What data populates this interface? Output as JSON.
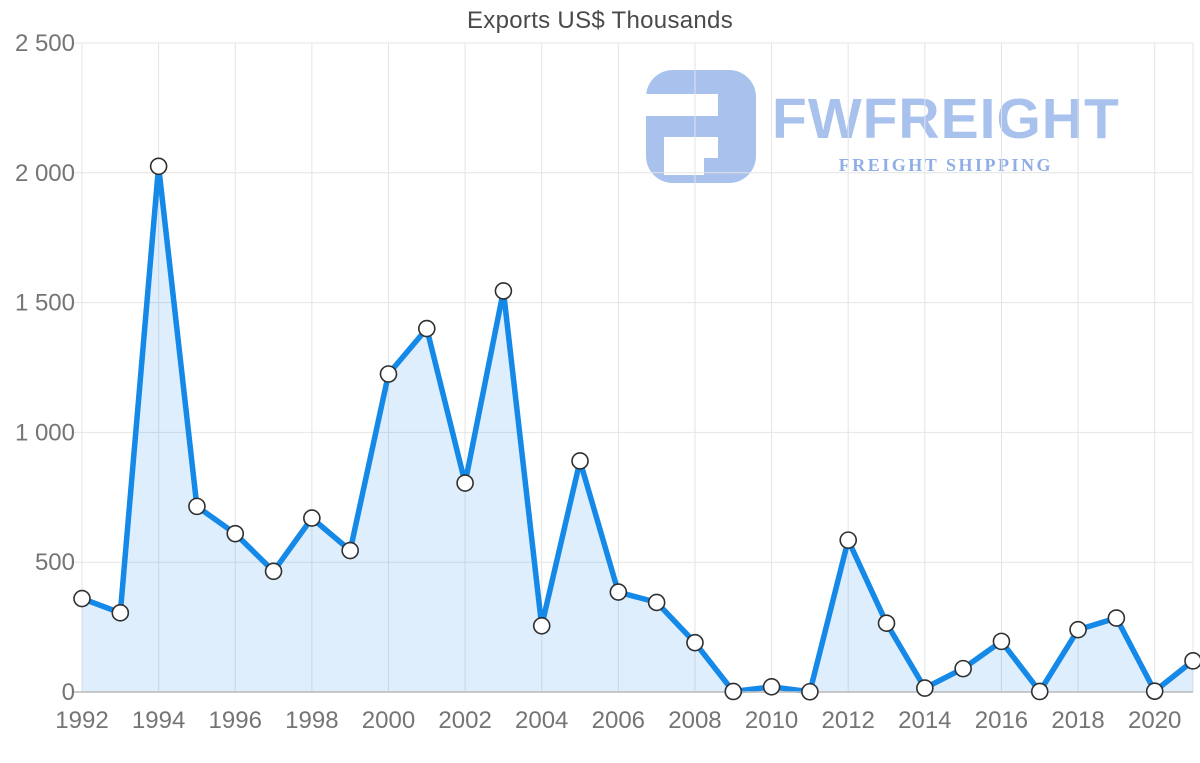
{
  "title": "Exports US$ Thousands",
  "watermark": {
    "brand": "FWFREIGHT",
    "tagline": "FREIGHT SHIPPING"
  },
  "theme": {
    "line_color": "#1589e8",
    "fill_color": "rgba(21,137,232,0.14)",
    "grid_color": "#e4e4e4",
    "axis_line_color": "#c2c2c2",
    "tick_text_color": "#757575",
    "title_color": "#4a4a4a",
    "marker_fill": "#ffffff",
    "marker_stroke": "#2f2f2f",
    "watermark_color": "#a8c1ed",
    "watermark_tagline_color": "#8fade6"
  },
  "chart_data": {
    "type": "area",
    "title": "Exports US$ Thousands",
    "x": [
      1992,
      1993,
      1994,
      1995,
      1996,
      1997,
      1998,
      1999,
      2000,
      2001,
      2002,
      2003,
      2004,
      2005,
      2006,
      2007,
      2008,
      2009,
      2010,
      2011,
      2012,
      2013,
      2014,
      2015,
      2016,
      2017,
      2018,
      2019,
      2020,
      2021
    ],
    "series": [
      {
        "name": "Exports US$ Thousands",
        "values": [
          360,
          305,
          2025,
          715,
          610,
          465,
          670,
          545,
          1225,
          1400,
          805,
          1545,
          255,
          890,
          385,
          345,
          190,
          2,
          20,
          1,
          585,
          265,
          15,
          90,
          195,
          2,
          240,
          285,
          3,
          120
        ]
      }
    ],
    "xlabel": "",
    "ylabel": "",
    "ylim": [
      0,
      2500
    ],
    "xlim": [
      1992,
      2021
    ],
    "y_ticks": [
      0,
      500,
      1000,
      1500,
      2000,
      2500
    ],
    "y_tick_labels": [
      "0",
      "500",
      "1 000",
      "1 500",
      "2 000",
      "2 500"
    ],
    "x_ticks": [
      1992,
      1994,
      1996,
      1998,
      2000,
      2002,
      2004,
      2006,
      2008,
      2010,
      2012,
      2014,
      2016,
      2018,
      2020
    ],
    "x_tick_labels": [
      "1992",
      "1994",
      "1996",
      "1998",
      "2000",
      "2002",
      "2004",
      "2006",
      "2008",
      "2010",
      "2012",
      "2014",
      "2016",
      "2018",
      "2020"
    ],
    "grid": true,
    "legend": false,
    "marker": "circle"
  }
}
